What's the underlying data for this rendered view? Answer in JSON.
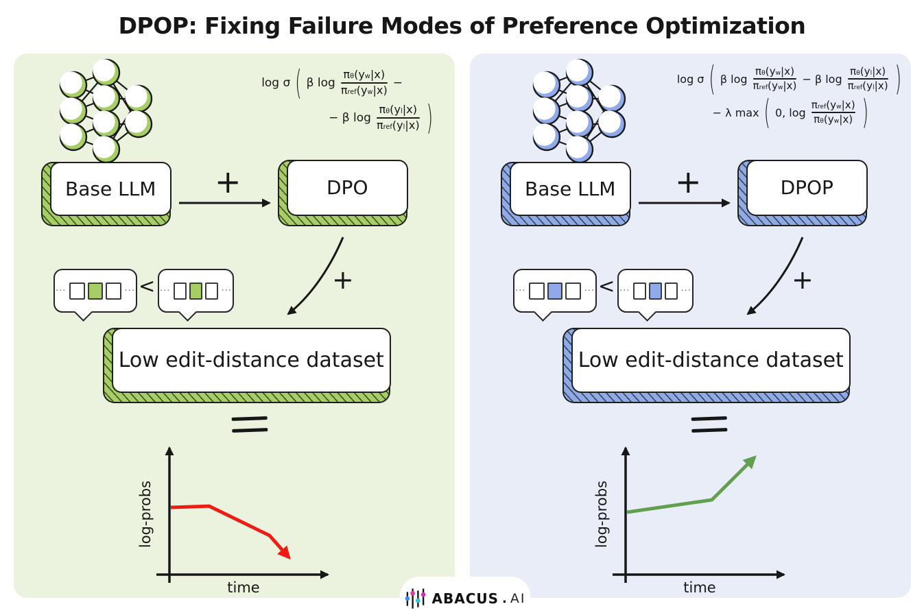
{
  "title": "DPOP: Fixing Failure Modes of Preference Optimization",
  "left": {
    "name": "DPO pipeline",
    "accent": "#a6cd66",
    "bg": "#ebf2dd",
    "formula": {
      "logsig": "log σ",
      "lparen": "(",
      "rparen": ")",
      "betalog": "β log",
      "minus": "−",
      "negbetalog": "− β log",
      "frac_w": {
        "n": [
          "π",
          "θ",
          "(y",
          "w",
          "|x)"
        ],
        "d": [
          "π",
          "ref",
          "(y",
          "w",
          "|x)"
        ]
      },
      "frac_l": {
        "n": [
          "π",
          "θ",
          "(y",
          "l",
          "|x)"
        ],
        "d": [
          "π",
          "ref",
          "(y",
          "l",
          "|x)"
        ]
      }
    },
    "base_label": "Base LLM",
    "plus": "+",
    "method_label": "DPO",
    "bubble_dots": "···",
    "less_than": "<",
    "dataset_label": "Low edit-distance dataset",
    "plot": {
      "ylabel": "log-probs",
      "xlabel": "time",
      "line_color": "#ee1d13",
      "trend": "log-probs decrease over time",
      "points_norm": [
        [
          0,
          0.5
        ],
        [
          0.217,
          0.51
        ],
        [
          0.558,
          0.284
        ],
        [
          0.667,
          0.116
        ]
      ]
    }
  },
  "right": {
    "name": "DPOP pipeline",
    "accent": "#8fa9e9",
    "bg": "#e9edf8",
    "formula": {
      "logsig": "log σ",
      "lparen": "(",
      "rparen": ")",
      "betalog": "β log",
      "negbetalog": "− β log",
      "lambdamax": "− λ max",
      "zerocomma": "0, log",
      "frac_w": {
        "n": [
          "π",
          "θ",
          "(y",
          "w",
          "|x)"
        ],
        "d": [
          "π",
          "ref",
          "(y",
          "w",
          "|x)"
        ]
      },
      "frac_l": {
        "n": [
          "π",
          "θ",
          "(y",
          "l",
          "|x)"
        ],
        "d": [
          "π",
          "ref",
          "(y",
          "l",
          "|x)"
        ]
      },
      "frac_ref": {
        "n": [
          "π",
          "ref",
          "(y",
          "w",
          "|x)"
        ],
        "d": [
          "π",
          "θ",
          "(y",
          "w",
          "|x)"
        ]
      }
    },
    "base_label": "Base LLM",
    "plus": "+",
    "method_label": "DPOP",
    "bubble_dots": "···",
    "less_than": "<",
    "dataset_label": "Low edit-distance dataset",
    "plot": {
      "ylabel": "log-probs",
      "xlabel": "time",
      "line_color": "#60a04e",
      "trend": "log-probs increase over time",
      "points_norm": [
        [
          0,
          0.463
        ],
        [
          0.48,
          0.558
        ],
        [
          0.721,
          0.884
        ]
      ]
    }
  },
  "footer": {
    "brand": "ABACUS",
    "dot": ".",
    "suffix": "AI"
  }
}
